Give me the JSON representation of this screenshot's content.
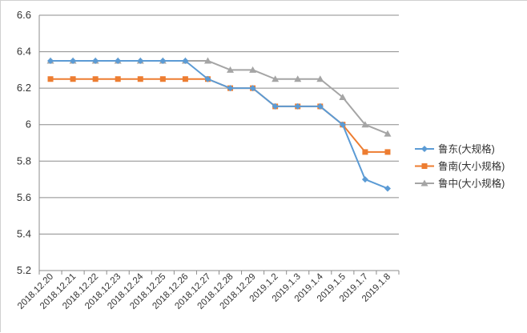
{
  "chart_data": {
    "type": "line",
    "categories": [
      "2018.12.20",
      "2018.12.21",
      "2018.12.22",
      "2018.12.23",
      "2018.12.24",
      "2018.12.25",
      "2018.12.26",
      "2018.12.27",
      "2018.12.28",
      "2018.12.29",
      "2019.1.2",
      "2019.1.3",
      "2019.1.4",
      "2019.1.5",
      "2019.1.7",
      "2019.1.8"
    ],
    "series": [
      {
        "name": "鲁东(大规格)",
        "color": "#5b9bd5",
        "marker": "diamond",
        "values": [
          6.35,
          6.35,
          6.35,
          6.35,
          6.35,
          6.35,
          6.35,
          6.25,
          6.2,
          6.2,
          6.1,
          6.1,
          6.1,
          6.0,
          5.7,
          5.65
        ]
      },
      {
        "name": "鲁南(大小规格)",
        "color": "#ed7d31",
        "marker": "square",
        "values": [
          6.25,
          6.25,
          6.25,
          6.25,
          6.25,
          6.25,
          6.25,
          6.25,
          6.2,
          6.2,
          6.1,
          6.1,
          6.1,
          6.0,
          5.85,
          5.85
        ]
      },
      {
        "name": "鲁中(大小规格)",
        "color": "#a5a5a5",
        "marker": "triangle",
        "values": [
          6.35,
          6.35,
          6.35,
          6.35,
          6.35,
          6.35,
          6.35,
          6.35,
          6.3,
          6.3,
          6.25,
          6.25,
          6.25,
          6.15,
          6.0,
          5.95
        ]
      }
    ],
    "y_ticks": [
      "5.2",
      "5.4",
      "5.6",
      "5.8",
      "6",
      "6.2",
      "6.4",
      "6.6"
    ],
    "ylim": [
      5.2,
      6.6
    ],
    "grid": "horizontal",
    "legend_position": "right",
    "title": "",
    "xlabel": "",
    "ylabel": ""
  }
}
